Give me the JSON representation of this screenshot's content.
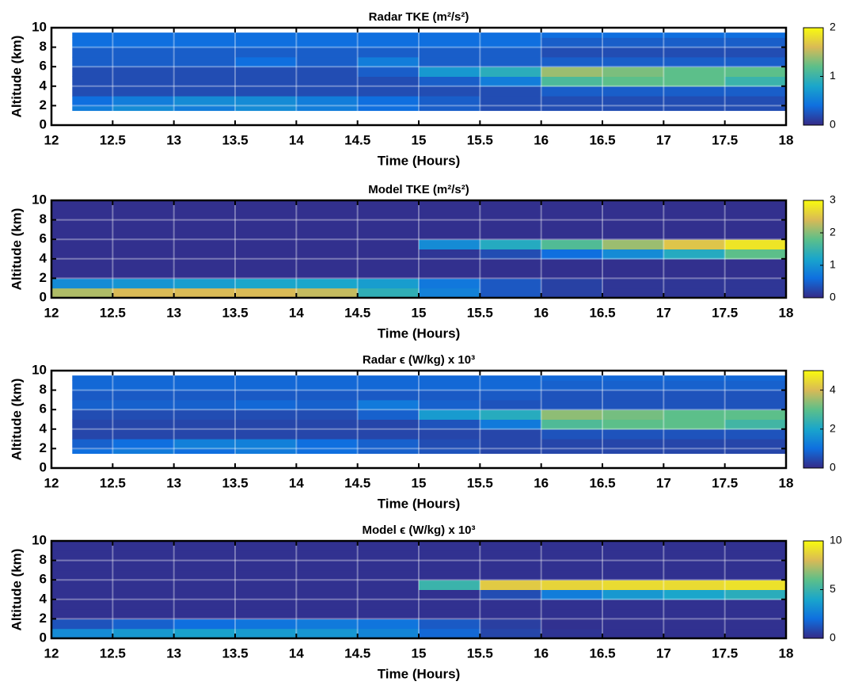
{
  "chart_data": [
    {
      "type": "heatmap",
      "title": "Radar TKE (m²/s²)",
      "xlabel": "Time (Hours)",
      "ylabel": "Altitude (km)",
      "x": [
        12.17,
        12.5,
        13,
        13.5,
        14,
        14.5,
        15,
        15.5,
        16,
        16.5,
        17,
        17.5,
        18
      ],
      "y": [
        1.5,
        2,
        3,
        4,
        5,
        6,
        7,
        8,
        9,
        9.5
      ],
      "z": [
        [
          0.5,
          0.6,
          0.5,
          0.6,
          0.5,
          0.4,
          0.3,
          0.2,
          0.2,
          0.2,
          0.2,
          0.2
        ],
        [
          0.4,
          0.5,
          0.6,
          0.6,
          0.5,
          0.4,
          0.3,
          0.2,
          0.2,
          0.2,
          0.2,
          0.2
        ],
        [
          0.2,
          0.2,
          0.2,
          0.2,
          0.2,
          0.2,
          0.2,
          0.2,
          0.3,
          0.3,
          0.3,
          0.3
        ],
        [
          0.2,
          0.2,
          0.2,
          0.2,
          0.2,
          0.2,
          0.3,
          0.5,
          1.1,
          1.2,
          1.2,
          1.0
        ],
        [
          0.2,
          0.2,
          0.2,
          0.2,
          0.2,
          0.3,
          0.7,
          0.9,
          1.4,
          1.3,
          1.2,
          1.2
        ],
        [
          0.3,
          0.3,
          0.3,
          0.4,
          0.3,
          0.5,
          0.3,
          0.3,
          0.3,
          0.3,
          0.3,
          0.3
        ],
        [
          0.3,
          0.3,
          0.3,
          0.3,
          0.3,
          0.3,
          0.3,
          0.3,
          0.2,
          0.2,
          0.2,
          0.2
        ],
        [
          0.4,
          0.4,
          0.4,
          0.4,
          0.4,
          0.4,
          0.4,
          0.4,
          0.3,
          0.3,
          0.3,
          0.3
        ],
        [
          0.4,
          0.4,
          0.4,
          0.4,
          0.4,
          0.4,
          0.4,
          0.4,
          0.4,
          0.4,
          0.4,
          0.4
        ]
      ],
      "xlim": [
        12,
        18
      ],
      "ylim": [
        0,
        10
      ],
      "xticks": [
        12,
        12.5,
        13,
        13.5,
        14,
        14.5,
        15,
        15.5,
        16,
        16.5,
        17,
        17.5,
        18
      ],
      "yticks": [
        0,
        2,
        4,
        6,
        8,
        10
      ],
      "grid": true,
      "clim": [
        0,
        2
      ],
      "cticks": [
        0,
        1,
        2
      ],
      "colormap": [
        "#352a87",
        "#0f6fdf",
        "#1aa6cb",
        "#5cbf8a",
        "#d9ba56",
        "#f9fb0e"
      ]
    },
    {
      "type": "heatmap",
      "title": "Model TKE (m²/s²)",
      "xlabel": "Time (Hours)",
      "ylabel": "Altitude (km)",
      "x": [
        12,
        12.5,
        13,
        13.5,
        14,
        14.5,
        15,
        15.5,
        16,
        16.5,
        17,
        17.5,
        18
      ],
      "y": [
        0,
        1,
        2,
        3,
        4,
        5,
        6,
        7,
        8,
        9,
        10
      ],
      "z": [
        [
          2.2,
          2.4,
          2.4,
          2.4,
          2.3,
          1.4,
          0.8,
          0.4,
          0.2,
          0.1,
          0.1,
          0.1
        ],
        [
          0.9,
          1.0,
          1.1,
          1.2,
          1.2,
          1.1,
          0.7,
          0.4,
          0.2,
          0.1,
          0.1,
          0.1
        ],
        [
          0.05,
          0.05,
          0.05,
          0.05,
          0.05,
          0.05,
          0.05,
          0.05,
          0.05,
          0.05,
          0.05,
          0.05
        ],
        [
          0.05,
          0.05,
          0.05,
          0.05,
          0.05,
          0.05,
          0.05,
          0.05,
          0.05,
          0.05,
          0.05,
          0.05
        ],
        [
          0.05,
          0.05,
          0.05,
          0.05,
          0.05,
          0.05,
          0.1,
          0.3,
          0.6,
          0.9,
          1.3,
          1.8
        ],
        [
          0.05,
          0.05,
          0.05,
          0.05,
          0.05,
          0.05,
          0.9,
          1.3,
          1.7,
          2.1,
          2.5,
          2.8
        ],
        [
          0.05,
          0.05,
          0.05,
          0.05,
          0.05,
          0.05,
          0.05,
          0.05,
          0.05,
          0.05,
          0.05,
          0.05
        ],
        [
          0.05,
          0.05,
          0.05,
          0.05,
          0.05,
          0.05,
          0.05,
          0.05,
          0.05,
          0.05,
          0.05,
          0.05
        ],
        [
          0.05,
          0.05,
          0.05,
          0.05,
          0.05,
          0.05,
          0.05,
          0.05,
          0.05,
          0.05,
          0.05,
          0.05
        ],
        [
          0.05,
          0.05,
          0.05,
          0.05,
          0.05,
          0.05,
          0.05,
          0.05,
          0.05,
          0.05,
          0.05,
          0.05
        ]
      ],
      "xlim": [
        12,
        18
      ],
      "ylim": [
        0,
        10
      ],
      "xticks": [
        12,
        12.5,
        13,
        13.5,
        14,
        14.5,
        15,
        15.5,
        16,
        16.5,
        17,
        17.5,
        18
      ],
      "yticks": [
        0,
        2,
        4,
        6,
        8,
        10
      ],
      "grid": true,
      "clim": [
        0,
        3
      ],
      "cticks": [
        0,
        1,
        2,
        3
      ],
      "colormap": [
        "#352a87",
        "#0f6fdf",
        "#1aa6cb",
        "#5cbf8a",
        "#d9ba56",
        "#f9fb0e"
      ]
    },
    {
      "type": "heatmap",
      "title": "Radar ϵ (W/kg)  x 10³",
      "xlabel": "Time (Hours)",
      "ylabel": "Altitude (km)",
      "x": [
        12.17,
        12.5,
        13,
        13.5,
        14,
        14.5,
        15,
        15.5,
        16,
        16.5,
        17,
        17.5,
        18
      ],
      "y": [
        1.5,
        2,
        3,
        4,
        5,
        6,
        7,
        8,
        9,
        9.5
      ],
      "z": [
        [
          1.0,
          1.2,
          1.0,
          1.2,
          1.0,
          0.8,
          0.6,
          0.4,
          0.4,
          0.4,
          0.4,
          0.4
        ],
        [
          0.8,
          1.0,
          1.3,
          1.3,
          1.0,
          0.8,
          0.5,
          0.4,
          0.4,
          0.4,
          0.4,
          0.4
        ],
        [
          0.4,
          0.4,
          0.4,
          0.4,
          0.4,
          0.4,
          0.4,
          0.4,
          0.6,
          0.6,
          0.6,
          0.6
        ],
        [
          0.4,
          0.4,
          0.4,
          0.4,
          0.4,
          0.4,
          0.6,
          1.2,
          2.8,
          3.0,
          3.0,
          2.6
        ],
        [
          0.5,
          0.5,
          0.5,
          0.5,
          0.5,
          0.8,
          1.8,
          2.2,
          3.4,
          3.2,
          3.0,
          3.0
        ],
        [
          0.8,
          0.8,
          0.8,
          0.9,
          0.8,
          1.2,
          0.8,
          0.6,
          0.6,
          0.6,
          0.6,
          0.6
        ],
        [
          0.7,
          0.7,
          0.7,
          0.7,
          0.7,
          0.7,
          0.7,
          0.7,
          0.6,
          0.6,
          0.6,
          0.6
        ],
        [
          0.9,
          0.9,
          0.9,
          0.9,
          0.9,
          0.9,
          0.9,
          0.9,
          0.8,
          0.8,
          0.8,
          0.8
        ],
        [
          0.9,
          0.9,
          0.9,
          0.9,
          0.9,
          0.9,
          0.9,
          0.9,
          0.9,
          0.9,
          0.9,
          0.9
        ]
      ],
      "xlim": [
        12,
        18
      ],
      "ylim": [
        0,
        10
      ],
      "xticks": [
        12,
        12.5,
        13,
        13.5,
        14,
        14.5,
        15,
        15.5,
        16,
        16.5,
        17,
        17.5,
        18
      ],
      "yticks": [
        0,
        2,
        4,
        6,
        8,
        10
      ],
      "grid": true,
      "clim": [
        0,
        5
      ],
      "cticks": [
        0,
        2,
        4
      ],
      "colormap": [
        "#352a87",
        "#0f6fdf",
        "#1aa6cb",
        "#5cbf8a",
        "#d9ba56",
        "#f9fb0e"
      ]
    },
    {
      "type": "heatmap",
      "title": "Model ϵ (W/kg) x 10³",
      "xlabel": "Time (Hours)",
      "ylabel": "Altitude (km)",
      "x": [
        12,
        12.5,
        13,
        13.5,
        14,
        14.5,
        15,
        15.5,
        16,
        16.5,
        17,
        17.5,
        18
      ],
      "y": [
        0,
        1,
        2,
        3,
        4,
        5,
        6,
        7,
        8,
        9,
        10
      ],
      "z": [
        [
          3.0,
          3.5,
          3.8,
          3.6,
          3.4,
          2.8,
          1.8,
          0.8,
          0.3,
          0.2,
          0.2,
          0.2
        ],
        [
          1.2,
          1.6,
          2.0,
          2.2,
          2.4,
          2.2,
          1.4,
          0.6,
          0.2,
          0.2,
          0.2,
          0.2
        ],
        [
          0.2,
          0.2,
          0.2,
          0.2,
          0.2,
          0.2,
          0.2,
          0.2,
          0.2,
          0.2,
          0.2,
          0.2
        ],
        [
          0.2,
          0.2,
          0.2,
          0.2,
          0.2,
          0.2,
          0.2,
          0.2,
          0.2,
          0.2,
          0.2,
          0.2
        ],
        [
          0.2,
          0.2,
          0.2,
          0.2,
          0.2,
          0.2,
          0.2,
          1.0,
          2.5,
          3.5,
          4.0,
          4.5
        ],
        [
          0.2,
          0.2,
          0.2,
          0.2,
          0.2,
          0.2,
          5.0,
          8.5,
          8.8,
          9.0,
          9.0,
          9.2
        ],
        [
          0.2,
          0.2,
          0.2,
          0.2,
          0.2,
          0.2,
          0.2,
          0.2,
          0.2,
          0.2,
          0.2,
          0.2
        ],
        [
          0.2,
          0.2,
          0.2,
          0.2,
          0.2,
          0.2,
          0.2,
          0.2,
          0.2,
          0.2,
          0.2,
          0.2
        ],
        [
          0.2,
          0.2,
          0.2,
          0.2,
          0.2,
          0.2,
          0.2,
          0.2,
          0.2,
          0.2,
          0.2,
          0.2
        ],
        [
          0.2,
          0.2,
          0.2,
          0.2,
          0.2,
          0.2,
          0.2,
          0.2,
          0.2,
          0.2,
          0.2,
          0.2
        ]
      ],
      "xlim": [
        12,
        18
      ],
      "ylim": [
        0,
        10
      ],
      "xticks": [
        12,
        12.5,
        13,
        13.5,
        14,
        14.5,
        15,
        15.5,
        16,
        16.5,
        17,
        17.5,
        18
      ],
      "yticks": [
        0,
        2,
        4,
        6,
        8,
        10
      ],
      "grid": true,
      "clim": [
        0,
        10
      ],
      "cticks": [
        0,
        5,
        10
      ],
      "colormap": [
        "#352a87",
        "#0f6fdf",
        "#1aa6cb",
        "#5cbf8a",
        "#d9ba56",
        "#f9fb0e"
      ]
    }
  ]
}
